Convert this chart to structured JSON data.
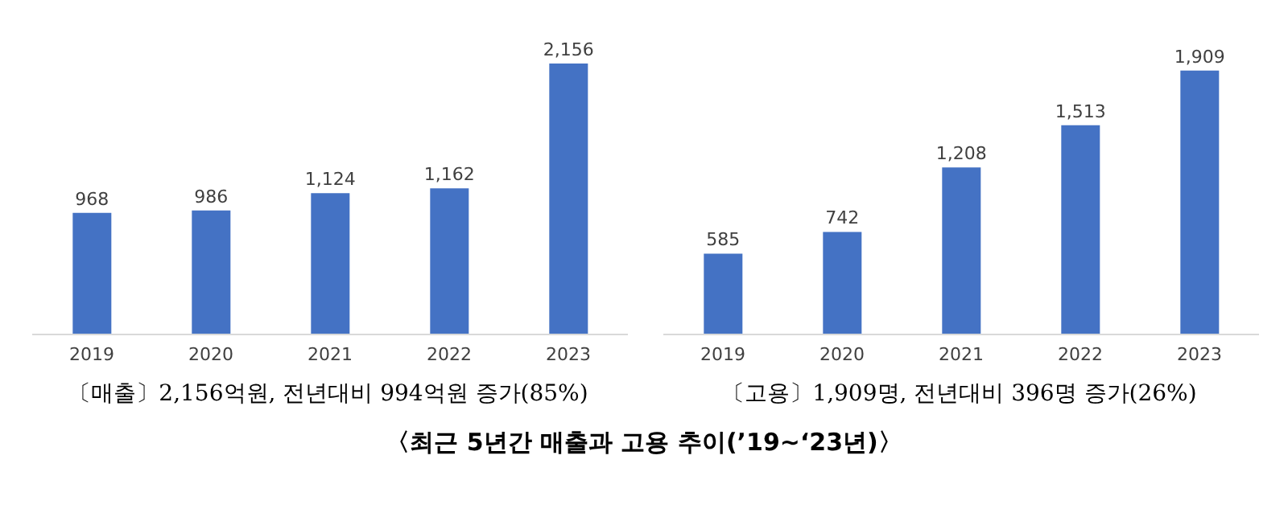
{
  "chart_data": [
    {
      "type": "bar",
      "categories": [
        "2019",
        "2020",
        "2021",
        "2022",
        "2023"
      ],
      "values": [
        968,
        986,
        1124,
        1162,
        2156
      ],
      "value_labels": [
        "968",
        "986",
        "1,124",
        "1,162",
        "2,156"
      ],
      "color": "#4472c4",
      "tick_labels": "x",
      "annotations": [
        "〔매출〕2,156억원, 전년대비 994억원 증가(85%)"
      ]
    },
    {
      "type": "bar",
      "categories": [
        "2019",
        "2020",
        "2021",
        "2022",
        "2023"
      ],
      "values": [
        585,
        742,
        1208,
        1513,
        1909
      ],
      "value_labels": [
        "585",
        "742",
        "1,208",
        "1,513",
        "1,909"
      ],
      "color": "#4472c4",
      "tick_labels": "x",
      "annotations": [
        "〔고용〕1,909명, 전년대비 396명 증가(26%)",
        "〈최근 5년간 매출과 고용 추이(’19~‘23년)〉"
      ]
    }
  ]
}
